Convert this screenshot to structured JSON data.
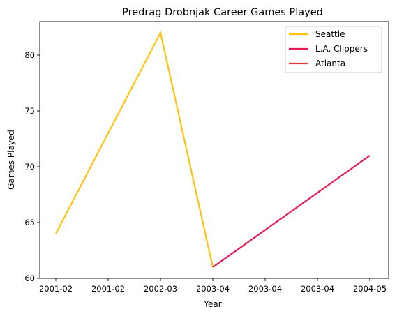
{
  "chart_data": {
    "type": "line",
    "title": "Predrag Drobnjak Career Games Played",
    "xlabel": "Year",
    "ylabel": "Games Played",
    "x_tick_labels": [
      "2001-02",
      "2001-02",
      "2002-03",
      "2003-04",
      "2003-04",
      "2003-04",
      "2004-05"
    ],
    "ylim": [
      60,
      83
    ],
    "y_ticks": [
      60,
      65,
      70,
      75,
      80
    ],
    "grid": false,
    "legend_position": "top-right",
    "series": [
      {
        "name": "Seattle",
        "color": "#FFC20E",
        "points": [
          {
            "x": "2001-02",
            "y": 64
          },
          {
            "x": "2002-03",
            "y": 82
          },
          {
            "x": "2003-04",
            "y": 61
          }
        ]
      },
      {
        "name": "L.A. Clippers",
        "color": "#E31B4E",
        "points": [
          {
            "x": "2003-04",
            "y": 61
          },
          {
            "x": "2004-05",
            "y": 71
          }
        ]
      },
      {
        "name": "Atlanta",
        "color": "#E03A3E",
        "points": []
      }
    ]
  }
}
